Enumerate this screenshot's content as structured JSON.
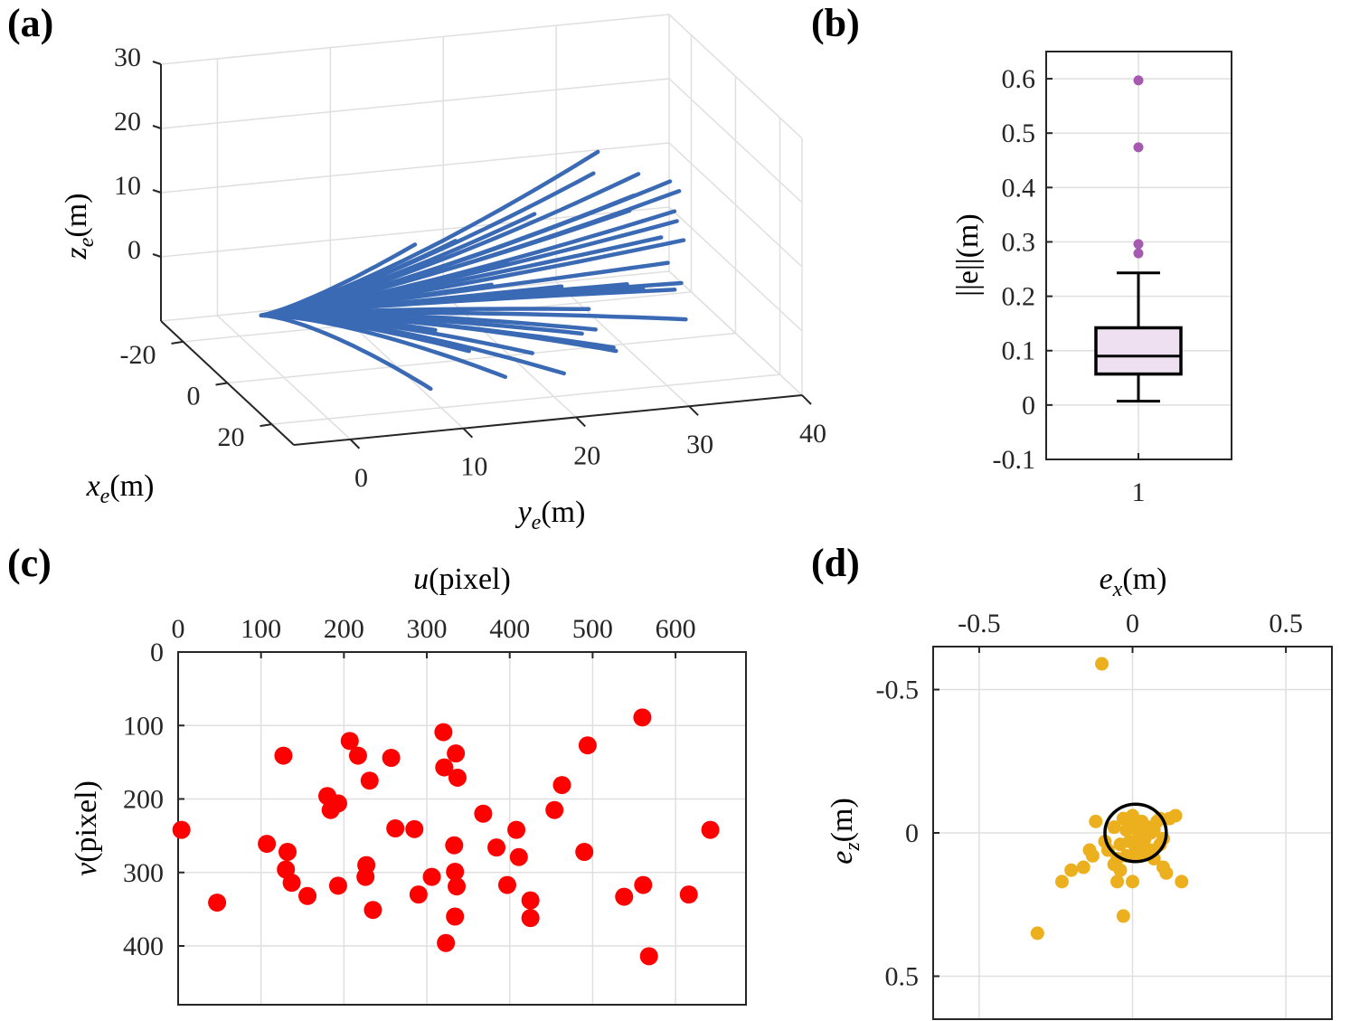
{
  "panels": {
    "a": {
      "label": "(a)"
    },
    "b": {
      "label": "(b)"
    },
    "c": {
      "label": "(c)"
    },
    "d": {
      "label": "(d)"
    }
  },
  "colors": {
    "trajectory": "#3b6ab5",
    "outlier": "#a55ab0",
    "box_fill": "#efe0f1",
    "points_c": "#ff0000",
    "points_d": "#ecb01f"
  },
  "chart_data": [
    {
      "panel": "a",
      "type": "line",
      "title": "",
      "xlabel": {
        "var": "x",
        "sub": "e",
        "unit": "(m)"
      },
      "ylabel": {
        "var": "y",
        "sub": "e",
        "unit": "(m)"
      },
      "zlabel": {
        "var": "z",
        "sub": "e",
        "unit": "(m)"
      },
      "xlim": [
        -30,
        30
      ],
      "ylim": [
        -5,
        40
      ],
      "zlim": [
        -10,
        30
      ],
      "x_ticks": [
        "-20",
        "0",
        "20"
      ],
      "y_ticks": [
        "0",
        "10",
        "20",
        "30",
        "40"
      ],
      "z_ticks": [
        "0",
        "10",
        "20",
        "30"
      ],
      "grid": true,
      "series_end_points": [
        [
          -1,
          28,
          20
        ],
        [
          -3,
          28,
          16
        ],
        [
          2,
          31,
          17
        ],
        [
          0,
          31,
          13
        ],
        [
          -2,
          31,
          10
        ],
        [
          1,
          34,
          15
        ],
        [
          3,
          34,
          11
        ],
        [
          0,
          35,
          13
        ],
        [
          -1,
          35,
          8
        ],
        [
          2,
          35,
          6
        ],
        [
          -3,
          34,
          5
        ],
        [
          0,
          34,
          2
        ],
        [
          1,
          35,
          -1
        ],
        [
          -2,
          35,
          -3
        ],
        [
          3,
          35,
          -6
        ],
        [
          -1,
          32,
          -2
        ],
        [
          2,
          30,
          0
        ],
        [
          0,
          27,
          -4
        ],
        [
          -2,
          28,
          -8
        ],
        [
          1,
          29,
          -10
        ],
        [
          -3,
          30,
          -12
        ],
        [
          2,
          26,
          -7
        ],
        [
          0,
          22,
          -10
        ],
        [
          -2,
          20,
          -14
        ],
        [
          3,
          24,
          1
        ],
        [
          -1,
          20,
          4
        ],
        [
          1,
          15,
          9
        ],
        [
          -2,
          12,
          8
        ],
        [
          2,
          16,
          -8
        ],
        [
          0,
          13,
          -14
        ],
        [
          -3,
          14,
          -6
        ],
        [
          1,
          22,
          12
        ],
        [
          -1,
          25,
          -14
        ],
        [
          2,
          18,
          2
        ],
        [
          0,
          10,
          3
        ]
      ]
    },
    {
      "panel": "b",
      "type": "box",
      "title": "",
      "xlabel": "",
      "ylabel": "||e||(m)",
      "categories": [
        "1"
      ],
      "ylim": [
        -0.1,
        0.65
      ],
      "y_ticks": [
        "-0.1",
        "0",
        "0.1",
        "0.2",
        "0.3",
        "0.4",
        "0.5",
        "0.6"
      ],
      "whisker_low": 0.007,
      "q1": 0.057,
      "median": 0.09,
      "q3": 0.142,
      "whisker_high": 0.243,
      "outliers": [
        0.279,
        0.296,
        0.474,
        0.597
      ],
      "grid": true
    },
    {
      "panel": "c",
      "type": "scatter",
      "title": "",
      "xlabel": {
        "var": "u",
        "unit": "(pixel)"
      },
      "ylabel": {
        "var": "v",
        "unit": "(pixel)"
      },
      "xlim": [
        0,
        685
      ],
      "ylim": [
        0,
        480
      ],
      "y_reversed": true,
      "x_ticks": [
        "0",
        "100",
        "200",
        "300",
        "400",
        "500",
        "600"
      ],
      "y_ticks": [
        "0",
        "100",
        "200",
        "300",
        "400"
      ],
      "grid": true,
      "points": [
        [
          4,
          242
        ],
        [
          47,
          341
        ],
        [
          107,
          261
        ],
        [
          127,
          141
        ],
        [
          132,
          272
        ],
        [
          130,
          296
        ],
        [
          137,
          314
        ],
        [
          156,
          332
        ],
        [
          180,
          196
        ],
        [
          184,
          215
        ],
        [
          193,
          206
        ],
        [
          193,
          318
        ],
        [
          207,
          121
        ],
        [
          217,
          141
        ],
        [
          227,
          290
        ],
        [
          226,
          306
        ],
        [
          231,
          175
        ],
        [
          235,
          351
        ],
        [
          257,
          144
        ],
        [
          262,
          240
        ],
        [
          285,
          241
        ],
        [
          290,
          330
        ],
        [
          306,
          306
        ],
        [
          320,
          109
        ],
        [
          321,
          157
        ],
        [
          323,
          396
        ],
        [
          335,
          138
        ],
        [
          337,
          171
        ],
        [
          333,
          263
        ],
        [
          334,
          299
        ],
        [
          336,
          319
        ],
        [
          334,
          360
        ],
        [
          368,
          220
        ],
        [
          384,
          266
        ],
        [
          397,
          317
        ],
        [
          408,
          242
        ],
        [
          411,
          279
        ],
        [
          425,
          338
        ],
        [
          425,
          362
        ],
        [
          454,
          215
        ],
        [
          463,
          181
        ],
        [
          490,
          272
        ],
        [
          494,
          127
        ],
        [
          538,
          333
        ],
        [
          560,
          89
        ],
        [
          561,
          317
        ],
        [
          568,
          414
        ],
        [
          616,
          330
        ],
        [
          642,
          242
        ]
      ]
    },
    {
      "panel": "d",
      "type": "scatter",
      "title": "",
      "xlabel": {
        "var": "e",
        "sub": "x",
        "unit": "(m)"
      },
      "ylabel": {
        "var": "e",
        "sub": "z",
        "unit": "(m)"
      },
      "xlim": [
        -0.65,
        0.65
      ],
      "ylim": [
        -0.65,
        0.65
      ],
      "y_reversed": true,
      "x_ticks": [
        "-0.5",
        "0",
        "0.5"
      ],
      "y_ticks": [
        "-0.5",
        "0",
        "0.5"
      ],
      "grid": true,
      "circle": {
        "cx": 0.01,
        "cz": 0.0,
        "r": 0.1
      },
      "points": [
        [
          -0.1,
          -0.59
        ],
        [
          -0.31,
          0.35
        ],
        [
          -0.23,
          0.17
        ],
        [
          -0.2,
          0.13
        ],
        [
          -0.16,
          0.12
        ],
        [
          -0.13,
          0.08
        ],
        [
          -0.14,
          0.06
        ],
        [
          -0.09,
          0.03
        ],
        [
          -0.06,
          -0.02
        ],
        [
          -0.05,
          0.09
        ],
        [
          -0.04,
          0.13
        ],
        [
          -0.05,
          0.17
        ],
        [
          -0.03,
          0.29
        ],
        [
          0.0,
          0.17
        ],
        [
          -0.12,
          -0.04
        ],
        [
          -0.02,
          0.08
        ],
        [
          -0.06,
          0.11
        ],
        [
          0.02,
          0.08
        ],
        [
          0.04,
          0.02
        ],
        [
          0.06,
          0.0
        ],
        [
          0.08,
          -0.04
        ],
        [
          0.09,
          -0.05
        ],
        [
          0.12,
          -0.05
        ],
        [
          0.14,
          -0.06
        ],
        [
          0.1,
          0.02
        ],
        [
          0.07,
          0.09
        ],
        [
          0.04,
          0.05
        ],
        [
          0.0,
          -0.06
        ],
        [
          -0.03,
          -0.05
        ],
        [
          0.03,
          -0.04
        ],
        [
          0.05,
          -0.02
        ],
        [
          0.1,
          0.12
        ],
        [
          0.06,
          0.06
        ],
        [
          0.09,
          0.04
        ],
        [
          0.16,
          0.17
        ],
        [
          0.11,
          0.14
        ],
        [
          0.02,
          0.0
        ],
        [
          -0.01,
          0.03
        ],
        [
          0.01,
          0.05
        ],
        [
          0.05,
          0.07
        ],
        [
          -0.08,
          0.06
        ],
        [
          0.0,
          -0.02
        ],
        [
          0.07,
          -0.01
        ],
        [
          0.02,
          0.02
        ],
        [
          -0.02,
          -0.01
        ],
        [
          0.03,
          0.07
        ],
        [
          -0.04,
          0.04
        ]
      ]
    }
  ]
}
